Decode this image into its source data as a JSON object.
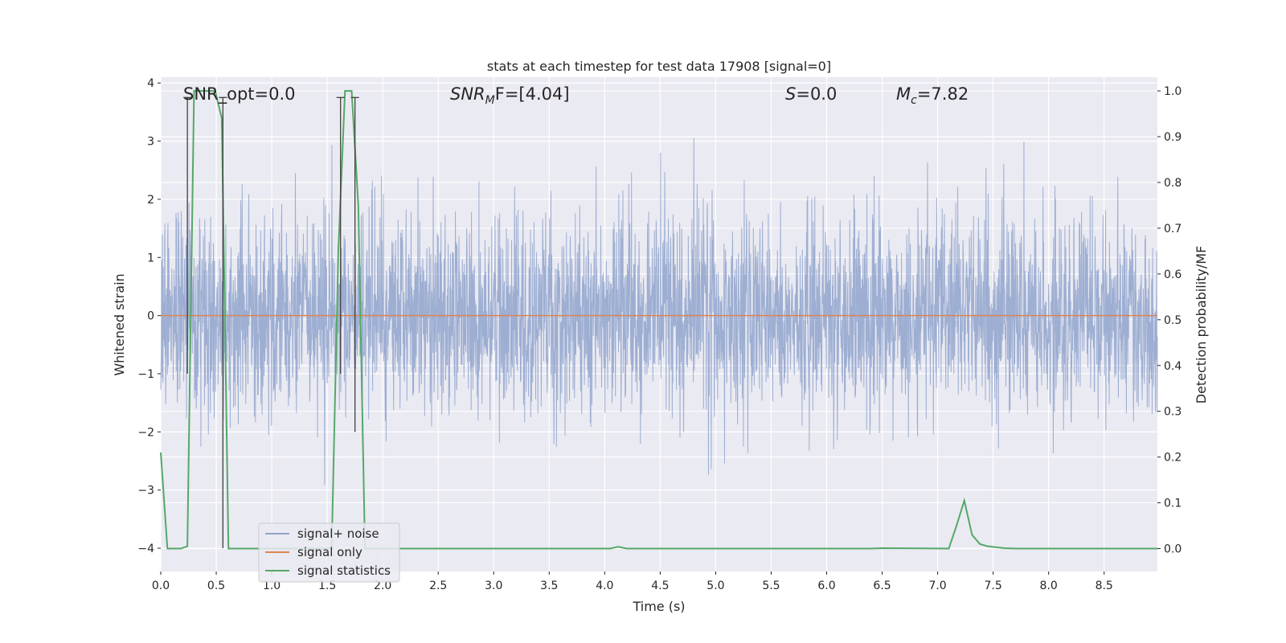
{
  "chart_data": {
    "type": "line",
    "title": "stats at each timestep for test data 17908 [signal=0]",
    "xlabel": "Time (s)",
    "ylabel": "Whitened strain",
    "ylabel_right": "Detection probability/MF",
    "xlim": [
      0,
      8.98
    ],
    "ylim": [
      -4.4,
      4.1
    ],
    "ylim_right": [
      -0.05,
      1.03
    ],
    "x_ticks": [
      0.0,
      0.5,
      1.0,
      1.5,
      2.0,
      2.5,
      3.0,
      3.5,
      4.0,
      4.5,
      5.0,
      5.5,
      6.0,
      6.5,
      7.0,
      7.5,
      8.0,
      8.5
    ],
    "x_tick_labels": [
      "0.0",
      "0.5",
      "1.0",
      "1.5",
      "2.0",
      "2.5",
      "3.0",
      "3.5",
      "4.0",
      "4.5",
      "5.0",
      "5.5",
      "6.0",
      "6.5",
      "7.0",
      "7.5",
      "8.0",
      "8.5"
    ],
    "y_ticks": [
      -4,
      -3,
      -2,
      -1,
      0,
      1,
      2,
      3,
      4
    ],
    "y_tick_labels": [
      "−4",
      "−3",
      "−2",
      "−1",
      "0",
      "1",
      "2",
      "3",
      "4"
    ],
    "y_ticks_right": [
      0.0,
      0.1,
      0.2,
      0.3,
      0.4,
      0.5,
      0.6,
      0.7,
      0.8,
      0.9,
      1.0
    ],
    "y_tick_labels_right": [
      "0.0",
      "0.1",
      "0.2",
      "0.3",
      "0.4",
      "0.5",
      "0.6",
      "0.7",
      "0.8",
      "0.9",
      "1.0"
    ],
    "grid": true,
    "legend_position": "lower-left",
    "series": [
      {
        "name": "signal+ noise",
        "axis": "left",
        "color": "#8fa3cc",
        "style": "dense Gaussian noise, std ~0.8, spanning the full time range"
      },
      {
        "name": "signal only",
        "axis": "left",
        "color": "#dd8452",
        "x": [
          0,
          8.98
        ],
        "y": [
          0,
          0
        ]
      },
      {
        "name": "signal statistics",
        "axis": "right",
        "color": "#55a868",
        "x": [
          0.0,
          0.06,
          0.18,
          0.24,
          0.3,
          0.36,
          0.49,
          0.55,
          0.61,
          0.67,
          1.54,
          1.6,
          1.66,
          1.72,
          1.78,
          1.84,
          1.9,
          4.05,
          4.12,
          4.2,
          6.4,
          6.5,
          7.1,
          7.17,
          7.24,
          7.31,
          7.38,
          7.45,
          7.6,
          7.7,
          8.98
        ],
        "y": [
          0.21,
          0.0,
          0.0,
          0.005,
          1.0,
          1.0,
          1.0,
          0.94,
          0.0,
          0.0,
          0.0,
          0.65,
          1.0,
          1.0,
          0.75,
          0.0,
          0.0,
          0.0,
          0.004,
          0.0,
          0.0,
          0.001,
          0.0,
          0.05,
          0.105,
          0.03,
          0.01,
          0.005,
          0.001,
          0.0,
          0.0
        ]
      }
    ],
    "vertical_markers": [
      {
        "x": 0.24,
        "y_top": 3.75,
        "y_bottom": -1.0
      },
      {
        "x": 0.56,
        "y_top": 3.75,
        "y_bottom": -4.0
      },
      {
        "x": 1.62,
        "y_top": 3.75,
        "y_bottom": -1.0
      },
      {
        "x": 1.75,
        "y_top": 3.75,
        "y_bottom": -2.0
      }
    ],
    "annotations": [
      {
        "text": "SNR_opt=0.0"
      },
      {
        "symbol": "SNR",
        "subscript": "M",
        "rest": "F=[4.04]"
      },
      {
        "symbol": "S",
        "rest": "=0.0"
      },
      {
        "symbol": "M",
        "subscript": "c",
        "rest": "=7.82"
      }
    ]
  }
}
